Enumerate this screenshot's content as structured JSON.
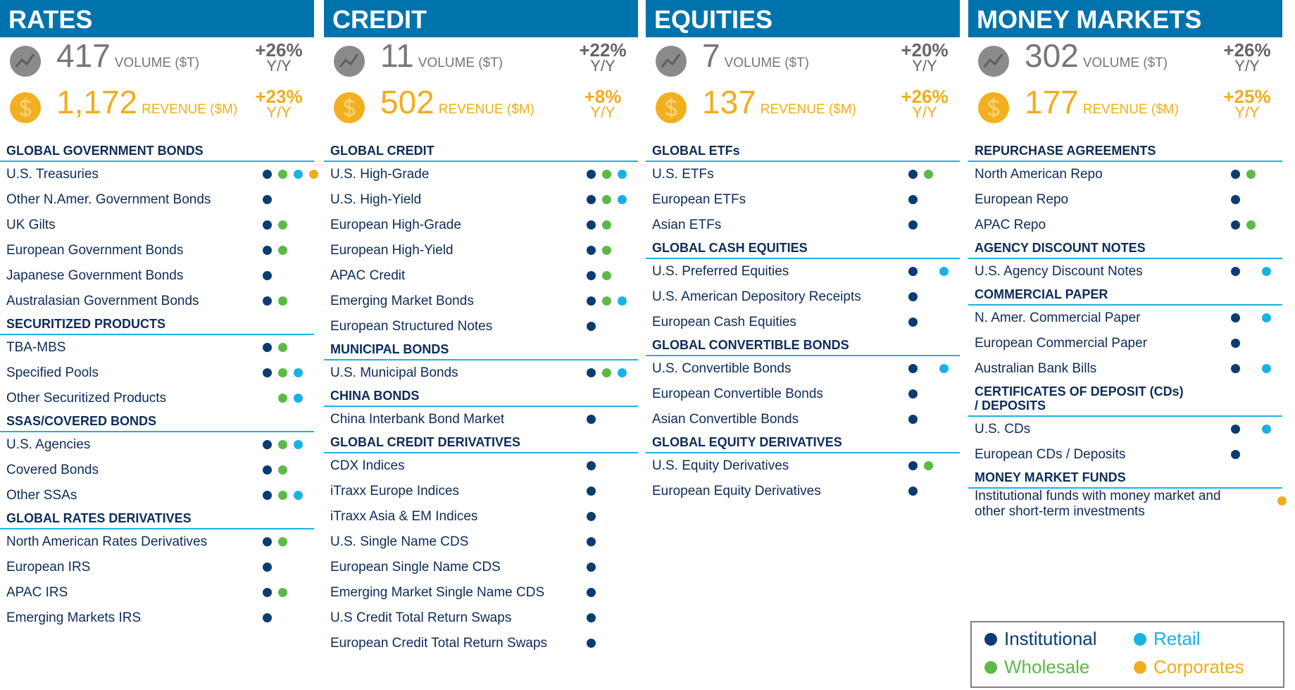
{
  "columns": [
    {
      "title": "RATES",
      "volume": {
        "value": "417",
        "label": "VOLUME ($T)",
        "change": "+26%",
        "period": "Y/Y"
      },
      "revenue": {
        "value": "1,172",
        "label": "REVENUE ($M)",
        "change": "+23%",
        "period": "Y/Y"
      },
      "sections": [
        {
          "heading": "GLOBAL GOVERNMENT BONDS",
          "items": [
            {
              "name": "U.S. Treasuries",
              "clients": [
                "Institutional",
                "Wholesale",
                "Retail",
                "Corporates"
              ]
            },
            {
              "name": "Other N.Amer. Government Bonds",
              "clients": [
                "Institutional"
              ]
            },
            {
              "name": "UK Gilts",
              "clients": [
                "Institutional",
                "Wholesale"
              ]
            },
            {
              "name": "European Government Bonds",
              "clients": [
                "Institutional",
                "Wholesale"
              ]
            },
            {
              "name": "Japanese Government Bonds",
              "clients": [
                "Institutional"
              ]
            },
            {
              "name": "Australasian Government Bonds",
              "clients": [
                "Institutional",
                "Wholesale"
              ]
            }
          ]
        },
        {
          "heading": "SECURITIZED PRODUCTS",
          "items": [
            {
              "name": "TBA-MBS",
              "clients": [
                "Institutional",
                "Wholesale"
              ]
            },
            {
              "name": "Specified Pools",
              "clients": [
                "Institutional",
                "Wholesale",
                "Retail"
              ]
            },
            {
              "name": "Other Securitized Products",
              "clients": [
                "Wholesale",
                "Retail"
              ]
            }
          ]
        },
        {
          "heading": "SSAS/COVERED BONDS",
          "items": [
            {
              "name": "U.S. Agencies",
              "clients": [
                "Institutional",
                "Wholesale",
                "Retail"
              ]
            },
            {
              "name": "Covered Bonds",
              "clients": [
                "Institutional",
                "Wholesale"
              ]
            },
            {
              "name": "Other SSAs",
              "clients": [
                "Institutional",
                "Wholesale",
                "Retail"
              ]
            }
          ]
        },
        {
          "heading": "GLOBAL RATES DERIVATIVES",
          "items": [
            {
              "name": "North American Rates Derivatives",
              "clients": [
                "Institutional",
                "Wholesale"
              ]
            },
            {
              "name": "European IRS",
              "clients": [
                "Institutional"
              ]
            },
            {
              "name": "APAC IRS",
              "clients": [
                "Institutional",
                "Wholesale"
              ]
            },
            {
              "name": "Emerging Markets IRS",
              "clients": [
                "Institutional"
              ]
            }
          ]
        }
      ]
    },
    {
      "title": "CREDIT",
      "volume": {
        "value": "11",
        "label": "VOLUME ($T)",
        "change": "+22%",
        "period": "Y/Y"
      },
      "revenue": {
        "value": "502",
        "label": "REVENUE ($M)",
        "change": "+8%",
        "period": "Y/Y"
      },
      "sections": [
        {
          "heading": "GLOBAL CREDIT",
          "items": [
            {
              "name": "U.S. High-Grade",
              "clients": [
                "Institutional",
                "Wholesale",
                "Retail"
              ]
            },
            {
              "name": "U.S. High-Yield",
              "clients": [
                "Institutional",
                "Wholesale",
                "Retail"
              ]
            },
            {
              "name": "European High-Grade",
              "clients": [
                "Institutional",
                "Wholesale"
              ]
            },
            {
              "name": "European High-Yield",
              "clients": [
                "Institutional",
                "Wholesale"
              ]
            },
            {
              "name": "APAC Credit",
              "clients": [
                "Institutional",
                "Wholesale"
              ]
            },
            {
              "name": "Emerging Market Bonds",
              "clients": [
                "Institutional",
                "Wholesale",
                "Retail"
              ]
            },
            {
              "name": "European Structured Notes",
              "clients": [
                "Institutional"
              ]
            }
          ]
        },
        {
          "heading": "MUNICIPAL BONDS",
          "items": [
            {
              "name": "U.S. Municipal Bonds",
              "clients": [
                "Institutional",
                "Wholesale",
                "Retail"
              ]
            }
          ]
        },
        {
          "heading": "CHINA BONDS",
          "items": [
            {
              "name": "China Interbank Bond Market",
              "clients": [
                "Institutional"
              ]
            }
          ]
        },
        {
          "heading": "GLOBAL CREDIT DERIVATIVES",
          "items": [
            {
              "name": "CDX Indices",
              "clients": [
                "Institutional"
              ]
            },
            {
              "name": "iTraxx Europe Indices",
              "clients": [
                "Institutional"
              ]
            },
            {
              "name": "iTraxx Asia & EM Indices",
              "clients": [
                "Institutional"
              ]
            },
            {
              "name": "U.S. Single Name CDS",
              "clients": [
                "Institutional"
              ]
            },
            {
              "name": "European Single Name CDS",
              "clients": [
                "Institutional"
              ]
            },
            {
              "name": "Emerging Market Single Name CDS",
              "clients": [
                "Institutional"
              ]
            },
            {
              "name": "U.S Credit Total Return Swaps",
              "clients": [
                "Institutional"
              ]
            },
            {
              "name": "European Credit Total Return Swaps",
              "clients": [
                "Institutional"
              ]
            }
          ]
        }
      ]
    },
    {
      "title": "EQUITIES",
      "volume": {
        "value": "7",
        "label": "VOLUME ($T)",
        "change": "+20%",
        "period": "Y/Y"
      },
      "revenue": {
        "value": "137",
        "label": "REVENUE ($M)",
        "change": "+26%",
        "period": "Y/Y"
      },
      "sections": [
        {
          "heading": "GLOBAL ETFs",
          "items": [
            {
              "name": "U.S. ETFs",
              "clients": [
                "Institutional",
                "Wholesale"
              ]
            },
            {
              "name": "European ETFs",
              "clients": [
                "Institutional"
              ]
            },
            {
              "name": "Asian ETFs",
              "clients": [
                "Institutional"
              ]
            }
          ]
        },
        {
          "heading": "GLOBAL CASH EQUITIES",
          "items": [
            {
              "name": "U.S. Preferred Equities",
              "clients": [
                "Institutional",
                "Retail"
              ]
            },
            {
              "name": "U.S. American Depository Receipts",
              "clients": [
                "Institutional"
              ]
            },
            {
              "name": "European Cash Equities",
              "clients": [
                "Institutional"
              ]
            }
          ]
        },
        {
          "heading": "GLOBAL CONVERTIBLE BONDS",
          "items": [
            {
              "name": "U.S. Convertible Bonds",
              "clients": [
                "Institutional",
                "Retail"
              ]
            },
            {
              "name": "European Convertible Bonds",
              "clients": [
                "Institutional"
              ]
            },
            {
              "name": "Asian Convertible Bonds",
              "clients": [
                "Institutional"
              ]
            }
          ]
        },
        {
          "heading": "GLOBAL EQUITY DERIVATIVES",
          "items": [
            {
              "name": "U.S. Equity Derivatives",
              "clients": [
                "Institutional",
                "Wholesale"
              ]
            },
            {
              "name": "European Equity Derivatives",
              "clients": [
                "Institutional"
              ]
            }
          ]
        }
      ]
    },
    {
      "title": "MONEY MARKETS",
      "volume": {
        "value": "302",
        "label": "VOLUME ($T)",
        "change": "+26%",
        "period": "Y/Y"
      },
      "revenue": {
        "value": "177",
        "label": "REVENUE ($M)",
        "change": "+25%",
        "period": "Y/Y"
      },
      "sections": [
        {
          "heading": "REPURCHASE AGREEMENTS",
          "items": [
            {
              "name": "North American Repo",
              "clients": [
                "Institutional",
                "Wholesale"
              ]
            },
            {
              "name": "European Repo",
              "clients": [
                "Institutional"
              ]
            },
            {
              "name": "APAC Repo",
              "clients": [
                "Institutional",
                "Wholesale"
              ]
            }
          ]
        },
        {
          "heading": "AGENCY DISCOUNT NOTES",
          "items": [
            {
              "name": "U.S. Agency Discount Notes",
              "clients": [
                "Institutional",
                "Retail"
              ]
            }
          ]
        },
        {
          "heading": "COMMERCIAL PAPER",
          "items": [
            {
              "name": "N. Amer. Commercial Paper",
              "clients": [
                "Institutional",
                "Retail"
              ]
            },
            {
              "name": "European Commercial Paper",
              "clients": [
                "Institutional"
              ]
            },
            {
              "name": "Australian Bank Bills",
              "clients": [
                "Institutional",
                "Retail"
              ]
            }
          ]
        },
        {
          "heading": "CERTIFICATES OF DEPOSIT (CDs) / DEPOSITS",
          "items": [
            {
              "name": "U.S. CDs",
              "clients": [
                "Institutional",
                "Retail"
              ]
            },
            {
              "name": "European CDs / Deposits",
              "clients": [
                "Institutional"
              ]
            }
          ]
        },
        {
          "heading": "MONEY MARKET FUNDS",
          "items": [
            {
              "name": "Institutional funds with money market and other short-term investments",
              "clients": [
                "Corporates"
              ]
            }
          ]
        }
      ]
    }
  ],
  "legend": [
    {
      "name": "Institutional",
      "color": "#0b3b73"
    },
    {
      "name": "Wholesale",
      "color": "#5cb946"
    },
    {
      "name": "Retail",
      "color": "#1ab2e6"
    },
    {
      "name": "Corporates",
      "color": "#f0ad1e"
    }
  ]
}
